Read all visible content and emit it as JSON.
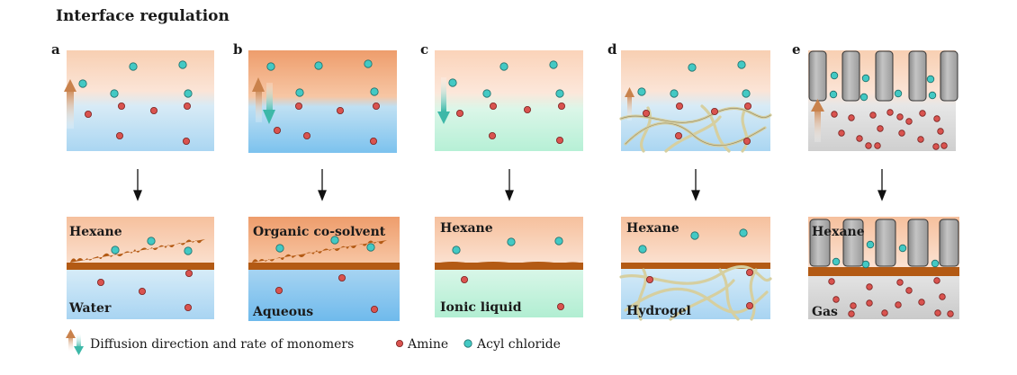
{
  "title": "Interface regulation",
  "panels": [
    {
      "letter": "a",
      "top_label": "Hexane",
      "bottom_label": "Water"
    },
    {
      "letter": "b",
      "top_label": "Organic co-solvent",
      "bottom_label": "Aqueous"
    },
    {
      "letter": "c",
      "top_label": "Hexane",
      "bottom_label": "Ionic liquid"
    },
    {
      "letter": "d",
      "top_label": "Hexane",
      "bottom_label": "Hydrogel"
    },
    {
      "letter": "e",
      "top_label": "Hexane",
      "bottom_label": "Gas"
    }
  ],
  "legend": {
    "diffusion": "Diffusion direction and rate of monomers",
    "amine": "Amine",
    "acyl": "Acyl chloride"
  },
  "colors": {
    "hexane": "#f7c8a8",
    "water": "#a9d4f0",
    "ionic": "#b8f0d8",
    "gas": "#d0d0d0",
    "film": "#b35a14",
    "amine": "#d9534f",
    "acyl": "#43c9c4"
  }
}
